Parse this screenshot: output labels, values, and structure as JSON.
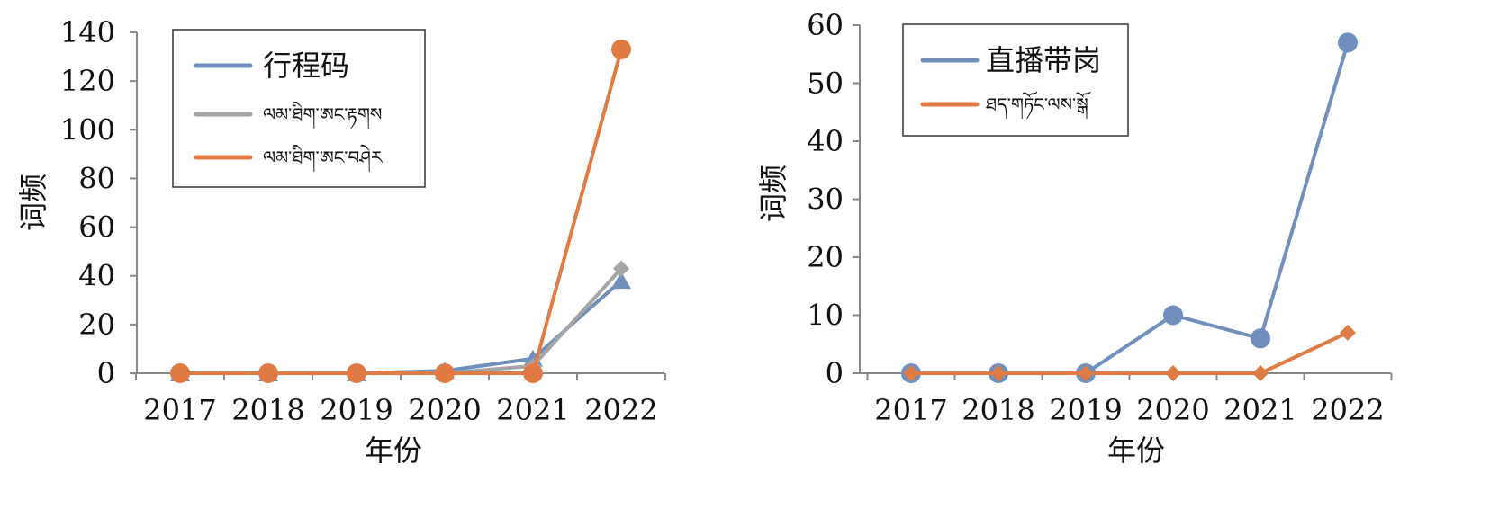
{
  "chart_data": [
    {
      "type": "line",
      "xlabel": "年份",
      "ylabel": "词频",
      "x": [
        "2017",
        "2018",
        "2019",
        "2020",
        "2021",
        "2022"
      ],
      "ylim": [
        0,
        140
      ],
      "yticks": [
        0,
        20,
        40,
        60,
        80,
        100,
        120,
        140
      ],
      "grid": false,
      "legend": "top-left",
      "series": [
        {
          "name": "行程码",
          "values": [
            0,
            0,
            0,
            1,
            6,
            38
          ],
          "color": "#6f8fbd",
          "marker": "triangle"
        },
        {
          "name": "ལམ་ཐིག་ཨང་རྟགས",
          "values": [
            0,
            0,
            0,
            0,
            3,
            43
          ],
          "color": "#a5a5a5",
          "marker": "diamond"
        },
        {
          "name": "ལམ་ཐིག་ཨང་བཤེར",
          "values": [
            0,
            0,
            0,
            0,
            0,
            133
          ],
          "color": "#e07b44",
          "marker": "circle"
        }
      ]
    },
    {
      "type": "line",
      "xlabel": "年份",
      "ylabel": "词频",
      "x": [
        "2017",
        "2018",
        "2019",
        "2020",
        "2021",
        "2022"
      ],
      "ylim": [
        0,
        60
      ],
      "yticks": [
        0,
        10,
        20,
        30,
        40,
        50,
        60
      ],
      "grid": false,
      "legend": "top-left",
      "series": [
        {
          "name": "直播带岗",
          "values": [
            0,
            0,
            0,
            10,
            6,
            57
          ],
          "color": "#6f8fbd",
          "marker": "circle"
        },
        {
          "name": "ཐད་གཏོང་ལས་སྒོ",
          "values": [
            0,
            0,
            0,
            0,
            0,
            7
          ],
          "color": "#e07b44",
          "marker": "diamond"
        }
      ]
    }
  ]
}
